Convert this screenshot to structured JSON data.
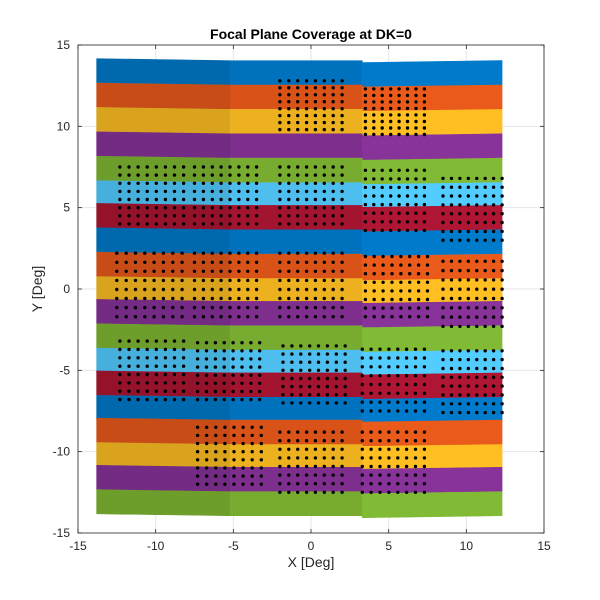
{
  "chart_data": {
    "type": "scatter",
    "title": "Focal Plane Coverage at DK=0",
    "xlabel": "X [Deg]",
    "ylabel": "Y [Deg]",
    "xlim": [
      -15,
      15
    ],
    "ylim": [
      -15,
      15
    ],
    "xticks": [
      -15,
      -10,
      -5,
      0,
      5,
      10,
      15
    ],
    "yticks": [
      -15,
      -10,
      -5,
      0,
      5,
      10,
      15
    ],
    "grid": true,
    "band_rows": [
      {
        "y_center": 13.3,
        "color": "#0072BD"
      },
      {
        "y_center": 11.8,
        "color": "#D95319"
      },
      {
        "y_center": 10.3,
        "color": "#EDB120"
      },
      {
        "y_center": 8.8,
        "color": "#7E2F8E"
      },
      {
        "y_center": 7.3,
        "color": "#77AC30"
      },
      {
        "y_center": 5.8,
        "color": "#4DBEEE"
      },
      {
        "y_center": 4.4,
        "color": "#A2142F"
      },
      {
        "y_center": 2.9,
        "color": "#0072BD"
      },
      {
        "y_center": 1.4,
        "color": "#D95319"
      },
      {
        "y_center": -0.1,
        "color": "#EDB120"
      },
      {
        "y_center": -1.5,
        "color": "#7E2F8E"
      },
      {
        "y_center": -3.0,
        "color": "#77AC30"
      },
      {
        "y_center": -4.5,
        "color": "#4DBEEE"
      },
      {
        "y_center": -5.9,
        "color": "#A2142F"
      },
      {
        "y_center": -7.4,
        "color": "#0072BD"
      },
      {
        "y_center": -8.8,
        "color": "#D95319"
      },
      {
        "y_center": -10.3,
        "color": "#EDB120"
      },
      {
        "y_center": -11.7,
        "color": "#7E2F8E"
      },
      {
        "y_center": -13.2,
        "color": "#77AC30"
      }
    ],
    "band_columns_x": [
      -13.8,
      -5.2,
      3.3,
      12.3
    ],
    "detector_tiles": [
      {
        "x": [
          -2.0,
          2.0
        ],
        "y": [
          9.8,
          12.8
        ]
      },
      {
        "x": [
          3.5,
          7.3
        ],
        "y": [
          9.5,
          12.3
        ]
      },
      {
        "x": [
          -12.3,
          -8.2
        ],
        "y": [
          4.0,
          7.5
        ]
      },
      {
        "x": [
          -7.5,
          -3.5
        ],
        "y": [
          4.0,
          7.5
        ]
      },
      {
        "x": [
          -2.0,
          2.0
        ],
        "y": [
          4.0,
          7.5
        ]
      },
      {
        "x": [
          3.5,
          7.3
        ],
        "y": [
          3.6,
          7.3
        ]
      },
      {
        "x": [
          8.5,
          12.3
        ],
        "y": [
          3.0,
          6.8
        ]
      },
      {
        "x": [
          -12.5,
          -8.3
        ],
        "y": [
          -1.7,
          2.2
        ]
      },
      {
        "x": [
          -7.5,
          -3.5
        ],
        "y": [
          -1.7,
          2.2
        ]
      },
      {
        "x": [
          -2.0,
          2.0
        ],
        "y": [
          -1.7,
          2.2
        ]
      },
      {
        "x": [
          3.5,
          7.5
        ],
        "y": [
          -1.7,
          2.0
        ]
      },
      {
        "x": [
          8.5,
          12.3
        ],
        "y": [
          -2.3,
          1.7
        ]
      },
      {
        "x": [
          -12.3,
          -8.2
        ],
        "y": [
          -6.8,
          -3.2
        ]
      },
      {
        "x": [
          -7.3,
          -3.3
        ],
        "y": [
          -6.8,
          -3.3
        ]
      },
      {
        "x": [
          -1.8,
          2.2
        ],
        "y": [
          -7.0,
          -3.5
        ]
      },
      {
        "x": [
          3.3,
          7.3
        ],
        "y": [
          -7.5,
          -3.7
        ]
      },
      {
        "x": [
          8.5,
          12.3
        ],
        "y": [
          -7.6,
          -3.8
        ]
      },
      {
        "x": [
          -7.3,
          -3.2
        ],
        "y": [
          -12.0,
          -8.5
        ]
      },
      {
        "x": [
          -2.0,
          2.0
        ],
        "y": [
          -12.5,
          -8.8
        ]
      },
      {
        "x": [
          3.3,
          7.3
        ],
        "y": [
          -12.5,
          -8.8
        ]
      }
    ],
    "tile_grid": {
      "cols": 8,
      "rows": 8
    }
  }
}
